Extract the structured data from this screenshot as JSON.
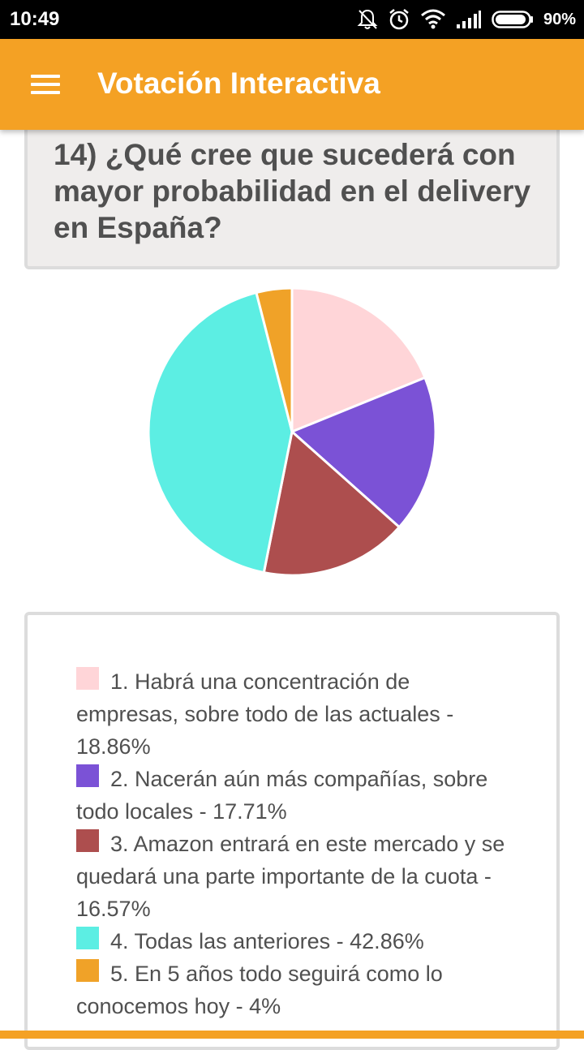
{
  "status_bar": {
    "time": "10:49",
    "icons": [
      "notifications-off-icon",
      "alarm-icon",
      "wifi-icon",
      "signal-icon",
      "battery-icon"
    ],
    "battery": "90%"
  },
  "app_bar": {
    "menu_icon": "hamburger-menu-icon",
    "title": "Votación Interactiva",
    "color": "#f4a124"
  },
  "question": {
    "text": "14) ¿Qué cree que sucederá con mayor probabilidad en el delivery en España?"
  },
  "chart_data": {
    "type": "pie",
    "title": "",
    "series": [
      {
        "label": "1. Habrá una concentración de empresas, sobre todo de las actuales - 18.86%",
        "value": 18.86,
        "color": "#ffd5d8"
      },
      {
        "label": "2. Nacerán aún más compañías, sobre todo locales - 17.71%",
        "value": 17.71,
        "color": "#7b52d6"
      },
      {
        "label": "3. Amazon entrará en este mercado y se quedará una parte importante de la cuota - 16.57%",
        "value": 16.57,
        "color": "#ad4e4e"
      },
      {
        "label": "4. Todas las anteriores - 42.86%",
        "value": 42.86,
        "color": "#5ceee3"
      },
      {
        "label": "5. En 5 años todo seguirá como lo conocemos hoy - 4%",
        "value": 4,
        "color": "#f0a228"
      }
    ],
    "legend": "below"
  }
}
